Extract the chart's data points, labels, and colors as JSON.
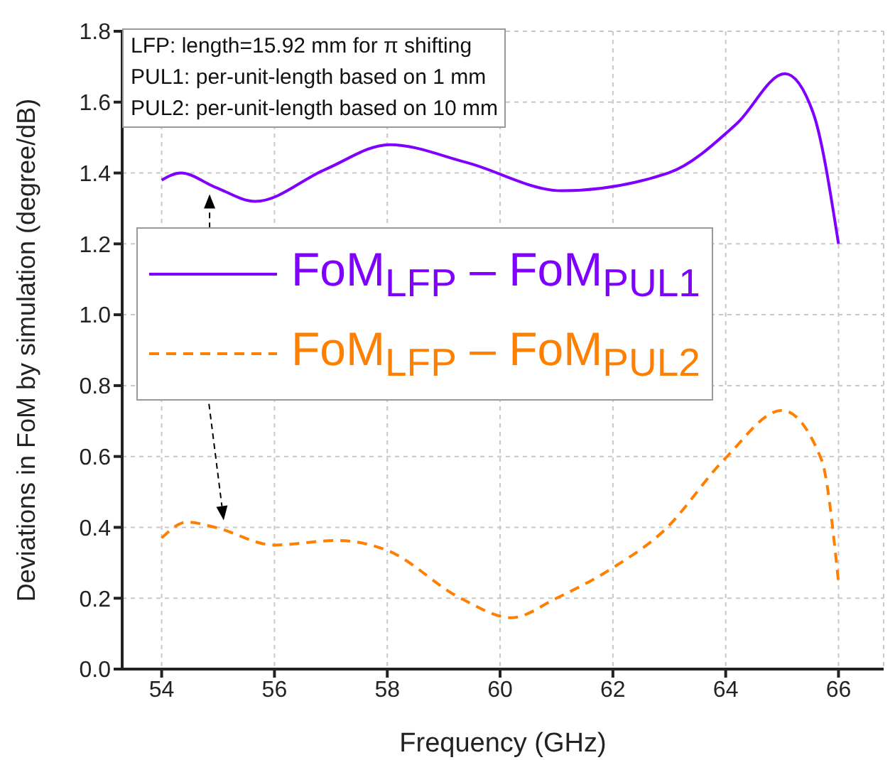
{
  "chart_data": {
    "type": "line",
    "xlabel": "Frequency (GHz)",
    "ylabel": "Deviations in FoM by simulation (degree/dB)",
    "xlim": [
      53.3,
      66.8
    ],
    "xticks": [
      54,
      56,
      58,
      60,
      62,
      64,
      66
    ],
    "ylim": [
      0,
      1.8
    ],
    "yticks": [
      {
        "value": 0,
        "label": "0.0"
      },
      0.2,
      0.4,
      0.6,
      0.8,
      {
        "value": 1,
        "label": "1.0"
      },
      1.2,
      1.4,
      1.6,
      1.8
    ],
    "grid": true,
    "legend": "left",
    "marker": "none",
    "annotations": [
      "LFP: length=15.92 mm for π shifting",
      "PUL1: per-unit-length based on 1 mm",
      "PUL2: per-unit-length based on 10 mm"
    ],
    "series": [
      {
        "name": "FoM$_{LFP}$ – FoM$_{PUL1}$",
        "color": "#8000ff",
        "line_style": "solid",
        "x": [
          54.0,
          54.34,
          54.95,
          55.66,
          56.9,
          58.04,
          59.4,
          61.1,
          62.98,
          64.2,
          65.05,
          65.55,
          66.0
        ],
        "values": [
          1.38,
          1.4,
          1.36,
          1.32,
          1.41,
          1.48,
          1.43,
          1.35,
          1.4,
          1.54,
          1.68,
          1.57,
          1.2
        ]
      },
      {
        "name": "FoM$_{LFP}$ – FoM$_{PUL2}$",
        "color": "#ff8000",
        "line_style": "dashed",
        "x": [
          54.0,
          54.45,
          54.95,
          56.0,
          57.1,
          58.0,
          59.3,
          60.2,
          61.0,
          62.0,
          62.9,
          64.0,
          65.0,
          65.7,
          66.0
        ],
        "values": [
          0.37,
          0.415,
          0.4,
          0.35,
          0.363,
          0.335,
          0.2,
          0.145,
          0.2,
          0.286,
          0.39,
          0.596,
          0.73,
          0.59,
          0.245
        ]
      }
    ]
  }
}
